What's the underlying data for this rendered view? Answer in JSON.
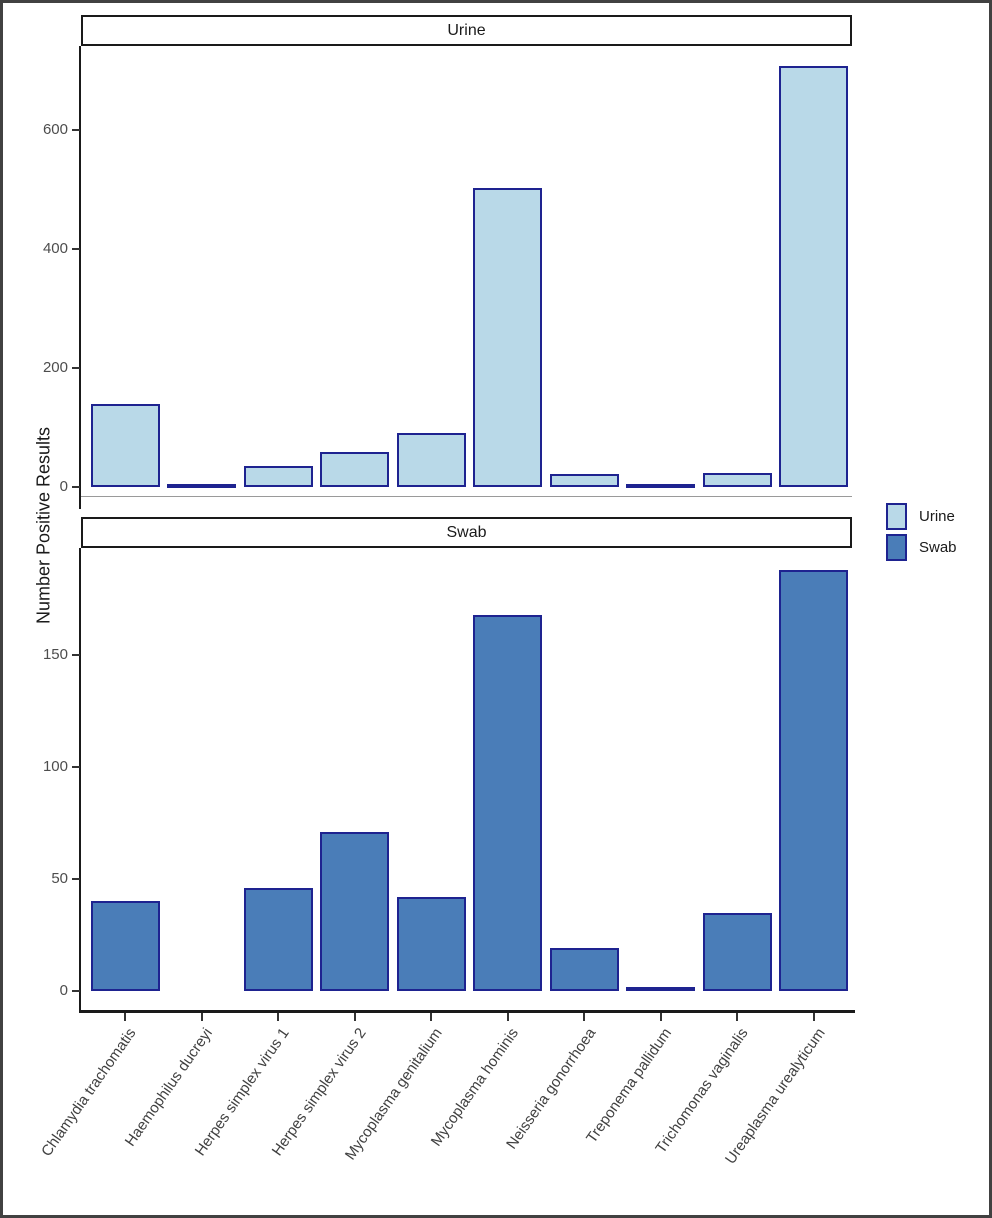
{
  "chart_data": {
    "type": "bar",
    "title": "",
    "ylabel": "Number Positive Results",
    "xlabel": "",
    "grid": "off",
    "facet_layout": "two stacked panels sharing x axis",
    "categories": [
      "Chlamydia trachomatis",
      "Haemophilus ducreyi",
      "Herpes simplex virus 1",
      "Herpes simplex virus 2",
      "Mycoplasma genitalium",
      "Mycoplasma hominis",
      "Neisseria gonorrhoea",
      "Treponema pallidum",
      "Trichomonas vaginalis",
      "Ureaplasma urealyticum"
    ],
    "series": [
      {
        "name": "Urine",
        "values": [
          140,
          2,
          35,
          58,
          90,
          503,
          22,
          2,
          23,
          708
        ],
        "color": "#b9d9e8",
        "yticks": [
          0,
          200,
          400,
          600
        ],
        "ylim": [
          0,
          760
        ]
      },
      {
        "name": "Swab",
        "values": [
          40,
          0,
          46,
          71,
          42,
          168,
          19,
          2,
          35,
          188
        ],
        "color": "#4a7db8",
        "yticks": [
          0,
          50,
          100,
          150
        ],
        "ylim": [
          0,
          200
        ]
      }
    ],
    "bar_border_color": "#1e2390",
    "legend": {
      "position": "right",
      "entries": [
        {
          "label": "Urine",
          "color": "#b9d9e8"
        },
        {
          "label": "Swab",
          "color": "#4a7db8"
        }
      ]
    }
  }
}
